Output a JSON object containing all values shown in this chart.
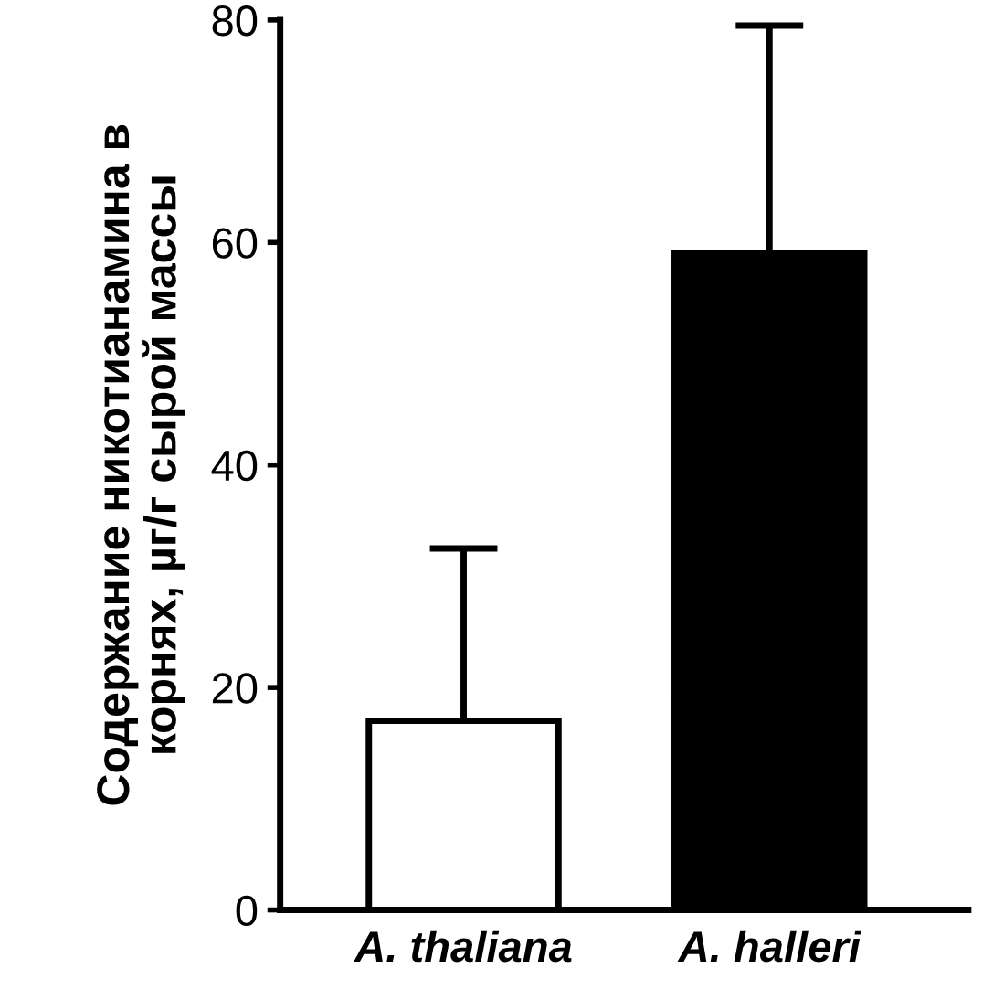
{
  "chart_data": {
    "type": "bar",
    "ylabel": "Содержание никотианамина в\nкорнях, µг/г сырой массы",
    "categories": [
      "A. thaliana",
      "A. halleri"
    ],
    "values": [
      17,
      59
    ],
    "errors": [
      [
        17,
        32.5
      ],
      [
        59,
        79.5
      ]
    ],
    "colors": [
      "#ffffff",
      "#000000"
    ],
    "ylim": [
      0,
      80
    ],
    "yticks": [
      0,
      20,
      40,
      60,
      80
    ],
    "grid": false
  }
}
